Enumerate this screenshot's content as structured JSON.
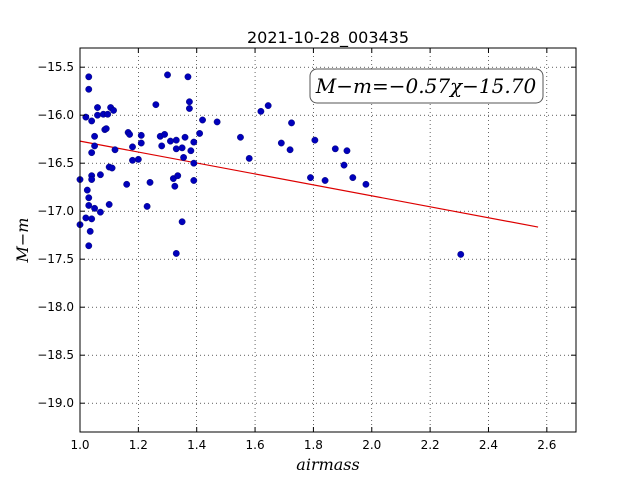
{
  "chart_data": {
    "type": "scatter",
    "title": "2021-10-28_003435",
    "xlabel": "airmass",
    "ylabel": "M−m",
    "xlim": [
      1.0,
      2.7
    ],
    "ylim": [
      -19.3,
      -15.3
    ],
    "xticks": [
      "1.0",
      "1.2",
      "1.4",
      "1.6",
      "1.8",
      "2.0",
      "2.2",
      "2.4",
      "2.6"
    ],
    "yticks": [
      "−15.5",
      "−16.0",
      "−16.5",
      "−17.0",
      "−17.5",
      "−18.0",
      "−18.5",
      "−19.0"
    ],
    "grid": true,
    "annotation": "M−m=−0.57χ−15.70",
    "point_color": "#0000bb",
    "fit_color": "#dd0000",
    "fit": {
      "slope": -0.57,
      "intercept": -15.7,
      "x_range": [
        1.0,
        2.57
      ]
    },
    "points": [
      [
        1.0,
        -16.67
      ],
      [
        1.0,
        -17.14
      ],
      [
        1.02,
        -16.02
      ],
      [
        1.02,
        -17.07
      ],
      [
        1.025,
        -16.78
      ],
      [
        1.03,
        -15.6
      ],
      [
        1.03,
        -15.73
      ],
      [
        1.03,
        -16.86
      ],
      [
        1.03,
        -16.94
      ],
      [
        1.03,
        -17.36
      ],
      [
        1.035,
        -17.21
      ],
      [
        1.04,
        -16.06
      ],
      [
        1.04,
        -16.39
      ],
      [
        1.04,
        -16.63
      ],
      [
        1.04,
        -16.67
      ],
      [
        1.04,
        -17.08
      ],
      [
        1.05,
        -16.22
      ],
      [
        1.05,
        -16.32
      ],
      [
        1.05,
        -16.97
      ],
      [
        1.06,
        -15.92
      ],
      [
        1.06,
        -16.0
      ],
      [
        1.07,
        -16.62
      ],
      [
        1.07,
        -17.01
      ],
      [
        1.08,
        -15.99
      ],
      [
        1.085,
        -16.15
      ],
      [
        1.09,
        -16.14
      ],
      [
        1.095,
        -15.99
      ],
      [
        1.1,
        -16.93
      ],
      [
        1.1,
        -16.54
      ],
      [
        1.105,
        -15.92
      ],
      [
        1.11,
        -16.55
      ],
      [
        1.115,
        -15.95
      ],
      [
        1.12,
        -16.36
      ],
      [
        1.16,
        -16.72
      ],
      [
        1.165,
        -16.18
      ],
      [
        1.17,
        -16.2
      ],
      [
        1.18,
        -16.33
      ],
      [
        1.18,
        -16.47
      ],
      [
        1.2,
        -16.46
      ],
      [
        1.21,
        -16.29
      ],
      [
        1.21,
        -16.21
      ],
      [
        1.23,
        -16.95
      ],
      [
        1.24,
        -16.7
      ],
      [
        1.26,
        -15.89
      ],
      [
        1.275,
        -16.22
      ],
      [
        1.28,
        -16.32
      ],
      [
        1.29,
        -16.2
      ],
      [
        1.3,
        -15.58
      ],
      [
        1.31,
        -16.27
      ],
      [
        1.32,
        -16.66
      ],
      [
        1.325,
        -16.74
      ],
      [
        1.33,
        -16.35
      ],
      [
        1.33,
        -16.26
      ],
      [
        1.33,
        -17.44
      ],
      [
        1.335,
        -16.63
      ],
      [
        1.35,
        -16.34
      ],
      [
        1.35,
        -17.11
      ],
      [
        1.355,
        -16.44
      ],
      [
        1.36,
        -16.23
      ],
      [
        1.37,
        -15.6
      ],
      [
        1.375,
        -15.86
      ],
      [
        1.375,
        -15.93
      ],
      [
        1.38,
        -16.37
      ],
      [
        1.39,
        -16.5
      ],
      [
        1.39,
        -16.68
      ],
      [
        1.39,
        -16.28
      ],
      [
        1.41,
        -16.19
      ],
      [
        1.42,
        -16.05
      ],
      [
        1.47,
        -16.07
      ],
      [
        1.55,
        -16.23
      ],
      [
        1.58,
        -16.45
      ],
      [
        1.62,
        -15.96
      ],
      [
        1.645,
        -15.9
      ],
      [
        1.69,
        -16.29
      ],
      [
        1.72,
        -16.36
      ],
      [
        1.725,
        -16.08
      ],
      [
        1.79,
        -16.65
      ],
      [
        1.805,
        -16.26
      ],
      [
        1.84,
        -16.68
      ],
      [
        1.875,
        -16.35
      ],
      [
        1.905,
        -16.52
      ],
      [
        1.915,
        -16.37
      ],
      [
        1.935,
        -16.65
      ],
      [
        1.98,
        -16.72
      ],
      [
        2.305,
        -17.45
      ]
    ]
  }
}
